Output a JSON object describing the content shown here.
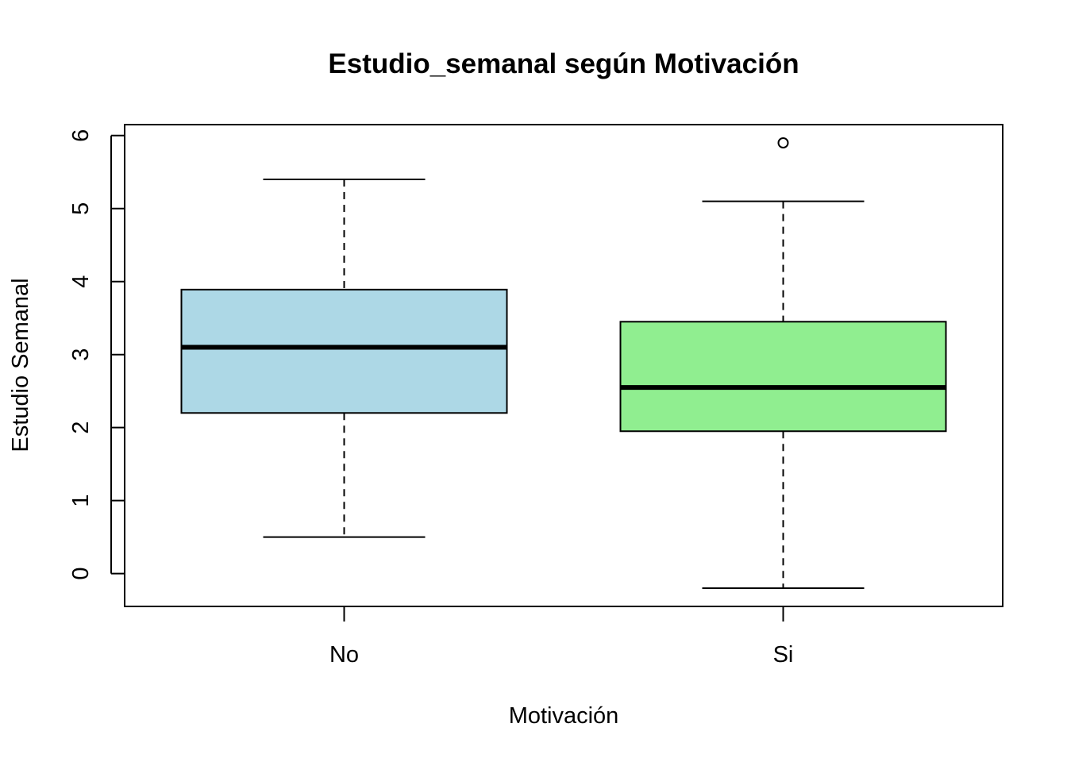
{
  "chart_data": {
    "type": "boxplot",
    "title": "Estudio_semanal según Motivación",
    "xlabel": "Motivación",
    "ylabel": "Estudio Semanal",
    "ylim": [
      -0.45,
      6.15
    ],
    "yticks": [
      "0",
      "1",
      "2",
      "3",
      "4",
      "5",
      "6"
    ],
    "categories": [
      "No",
      "Si"
    ],
    "boxes": [
      {
        "category": "No",
        "whisker_low": 0.5,
        "q1": 2.2,
        "median": 3.1,
        "q3": 3.89,
        "whisker_high": 5.4,
        "outliers": [],
        "fill": "#ADD8E6"
      },
      {
        "category": "Si",
        "whisker_low": -0.2,
        "q1": 1.95,
        "median": 2.55,
        "q3": 3.45,
        "whisker_high": 5.1,
        "outliers": [
          5.9
        ],
        "fill": "#90EE90"
      }
    ],
    "grid": false,
    "legend": "none"
  }
}
